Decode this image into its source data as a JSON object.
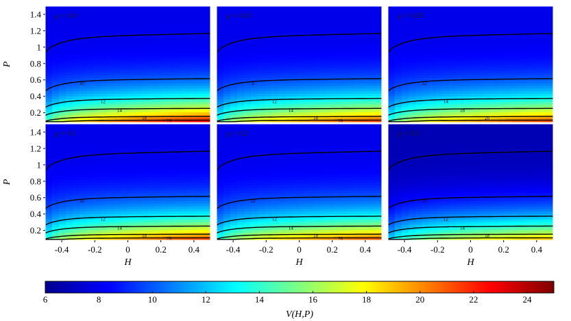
{
  "chart_data": {
    "type": "heatmap",
    "layout": "2x3 grid of contour/heatmap panels sharing axes and colorbar",
    "xlabel": "H",
    "ylabel": "P",
    "xlim": [
      -0.5,
      0.5
    ],
    "ylim": [
      0.08,
      1.5
    ],
    "x_ticks": [
      "-0.4",
      "-0.2",
      "0",
      "0.2",
      "0.4"
    ],
    "y_ticks": [
      "0.2",
      "0.4",
      "0.6",
      "0.8",
      "1",
      "1.2",
      "1.4"
    ],
    "colorbar": {
      "label": "V(H,P)",
      "range": [
        6,
        25
      ],
      "ticks": [
        "6",
        "8",
        "10",
        "12",
        "14",
        "16",
        "18",
        "20",
        "22",
        "24"
      ],
      "colormap": "jet"
    },
    "panels": [
      {
        "label": "g = 0.0",
        "contour_labels": [
          "10",
          "12",
          "14",
          "18",
          "20"
        ],
        "vmin": 8.0,
        "vmax": 23.5
      },
      {
        "label": "g = 0.01",
        "contour_labels": [
          "8",
          "12",
          "14",
          "18",
          "20"
        ],
        "vmin": 8.0,
        "vmax": 22.0
      },
      {
        "label": "g = 0.05",
        "contour_labels": [
          "12",
          "14",
          "18",
          "20"
        ],
        "vmin": 8.0,
        "vmax": 22.0
      },
      {
        "label": "g = 0.1",
        "contour_labels": [
          "10",
          "12",
          "14",
          "18",
          "20"
        ],
        "vmin": 8.0,
        "vmax": 22.0
      },
      {
        "label": "g = 0.2",
        "contour_labels": [
          "10",
          "12",
          "14",
          "18",
          "20"
        ],
        "vmin": 8.0,
        "vmax": 21.5
      },
      {
        "label": "g = 0.5",
        "contour_labels": [
          "10",
          "12",
          "14",
          "18"
        ],
        "vmin": 7.0,
        "vmax": 19.5
      }
    ]
  }
}
